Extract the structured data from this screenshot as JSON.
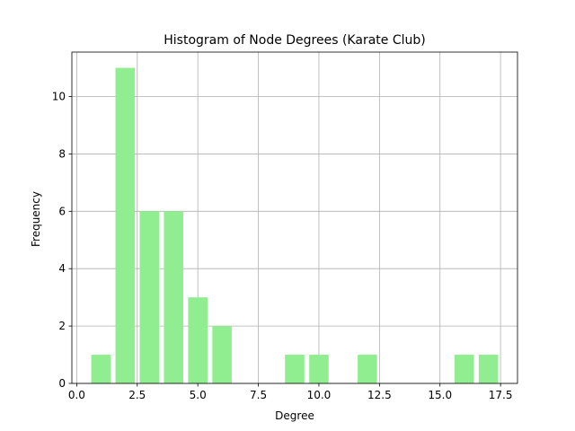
{
  "chart_data": {
    "type": "bar",
    "title": "Histogram of Node Degrees (Karate Club)",
    "xlabel": "Degree",
    "ylabel": "Frequency",
    "xlim": [
      -0.2,
      18.2
    ],
    "ylim": [
      0,
      11.55
    ],
    "grid": true,
    "bar_color": "#90ee90",
    "xticks": [
      0.0,
      2.5,
      5.0,
      7.5,
      10.0,
      12.5,
      15.0,
      17.5
    ],
    "xtick_labels": [
      "0.0",
      "2.5",
      "5.0",
      "7.5",
      "10.0",
      "12.5",
      "15.0",
      "17.5"
    ],
    "yticks": [
      0,
      2,
      4,
      6,
      8,
      10
    ],
    "ytick_labels": [
      "0",
      "2",
      "4",
      "6",
      "8",
      "10"
    ],
    "x": [
      1,
      2,
      3,
      4,
      5,
      6,
      9,
      10,
      12,
      16,
      17
    ],
    "values": [
      1,
      11,
      6,
      6,
      3,
      2,
      1,
      1,
      1,
      1,
      1
    ],
    "bar_width": 0.8
  }
}
